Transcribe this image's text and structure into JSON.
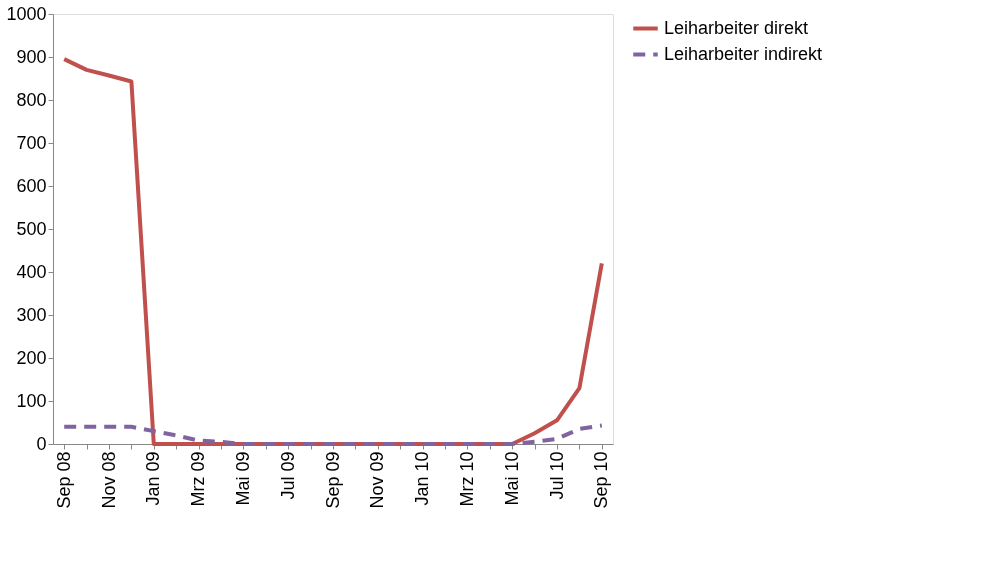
{
  "chart_data": {
    "type": "line",
    "categories": [
      "Sep 08",
      null,
      "Nov 08",
      null,
      "Jan 09",
      null,
      "Mrz 09",
      null,
      "Mai 09",
      null,
      "Jul 09",
      null,
      "Sep 09",
      null,
      "Nov 09",
      null,
      "Jan 10",
      null,
      "Mrz 10",
      null,
      "Mai 10",
      null,
      "Jul 10",
      null,
      "Sep 10"
    ],
    "series": [
      {
        "name": "Leiharbeiter direkt",
        "color": "#c0504d",
        "line_style": "solid",
        "values": [
          895,
          870,
          857,
          843,
          0,
          0,
          0,
          0,
          0,
          0,
          0,
          0,
          0,
          0,
          0,
          0,
          0,
          0,
          0,
          0,
          0,
          25,
          55,
          130,
          420
        ]
      },
      {
        "name": "Leiharbeiter indirekt",
        "color": "#8064a2",
        "line_style": "dashed",
        "values": [
          40,
          40,
          40,
          40,
          30,
          20,
          8,
          5,
          0,
          0,
          0,
          0,
          0,
          0,
          0,
          0,
          0,
          0,
          0,
          0,
          0,
          5,
          12,
          35,
          43
        ]
      }
    ],
    "ylim": [
      0,
      1000
    ],
    "yticks": [
      0,
      100,
      200,
      300,
      400,
      500,
      600,
      700,
      800,
      900,
      1000
    ],
    "grid": false,
    "legend": "right",
    "marker": "none"
  }
}
